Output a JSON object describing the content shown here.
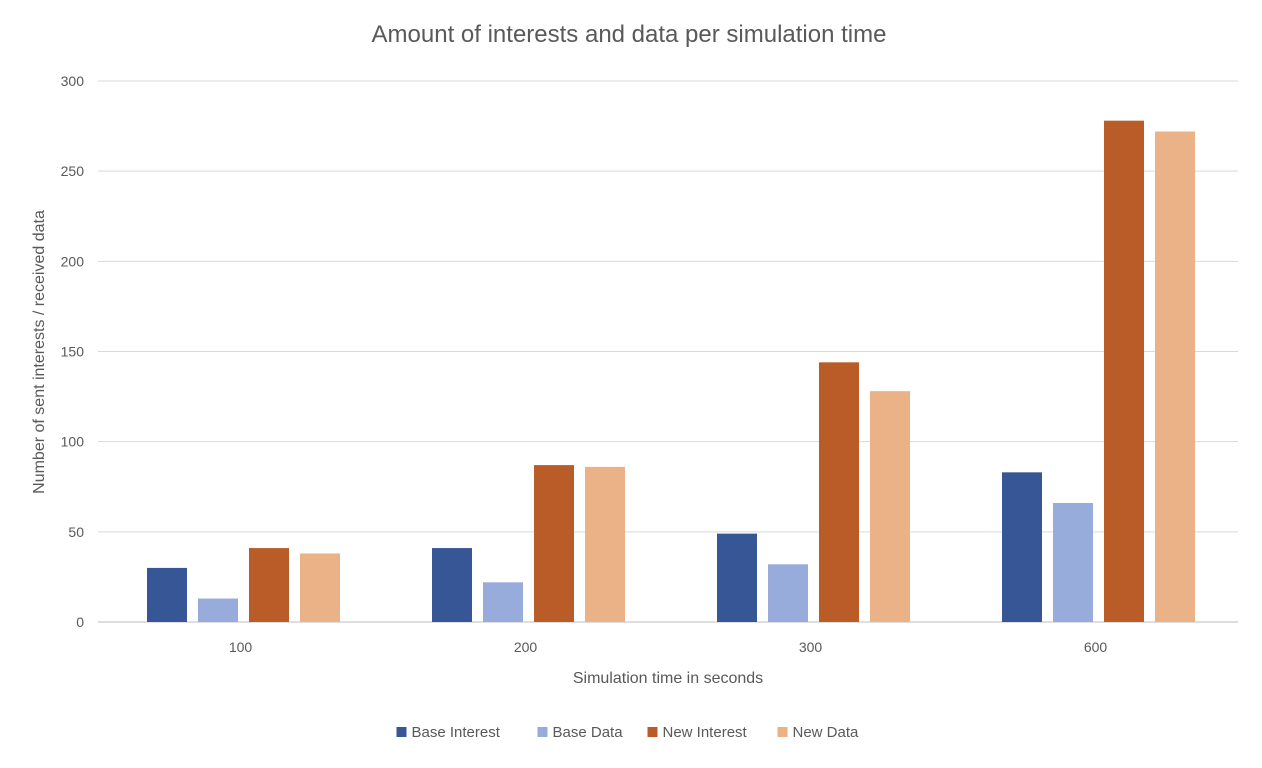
{
  "chart_data": {
    "type": "bar",
    "title": "Amount of interests and data per simulation time",
    "xlabel": "Simulation time in seconds",
    "ylabel": "Number of sent interests / received data",
    "categories": [
      "100",
      "200",
      "300",
      "600"
    ],
    "ylim": [
      0,
      300
    ],
    "yticks": [
      0,
      50,
      100,
      150,
      200,
      250,
      300
    ],
    "grid": true,
    "legend_position": "bottom",
    "series": [
      {
        "name": "Base Interest",
        "color": "#375696",
        "values": [
          30,
          41,
          49,
          83
        ]
      },
      {
        "name": "Base Data",
        "color": "#97acdb",
        "values": [
          13,
          22,
          32,
          66
        ]
      },
      {
        "name": "New Interest",
        "color": "#b95c28",
        "values": [
          41,
          87,
          144,
          278
        ]
      },
      {
        "name": "New Data",
        "color": "#ebb288",
        "values": [
          38,
          86,
          128,
          272
        ]
      }
    ]
  }
}
